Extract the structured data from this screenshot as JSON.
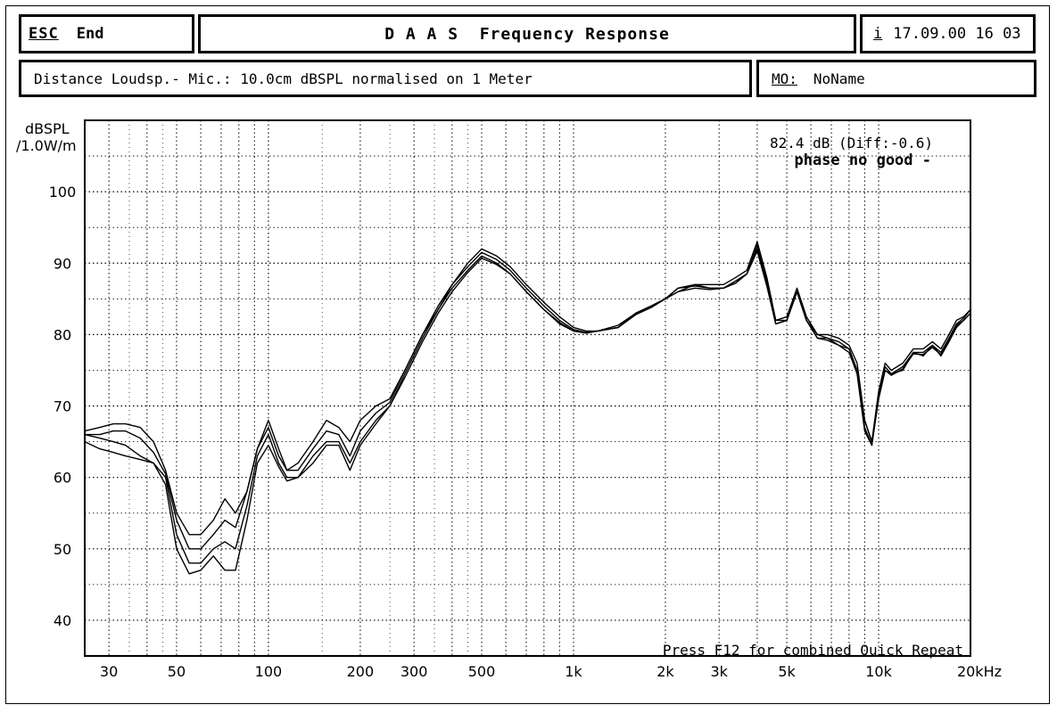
{
  "header": {
    "esc_key": "ESC",
    "end_label": "End",
    "title": "D A A S  Frequency Response",
    "info_key": "i",
    "datetime": "17.09.00 16 03"
  },
  "subheader": {
    "info": "Distance Loudsp.- Mic.: 10.0cm dBSPL normalised on 1 Meter",
    "mo_key": "MO:",
    "mo_value": "NoName"
  },
  "chart_data": {
    "type": "line",
    "ylabel": "dBSPL",
    "ylabel_unit": "/1.0W/m",
    "xscale": "log",
    "xlim": [
      25,
      20000
    ],
    "ylim": [
      35,
      110
    ],
    "yticks": [
      40,
      50,
      60,
      70,
      80,
      90,
      100
    ],
    "xticks": [
      {
        "v": 30,
        "label": "30"
      },
      {
        "v": 50,
        "label": "50"
      },
      {
        "v": 100,
        "label": "100"
      },
      {
        "v": 200,
        "label": "200"
      },
      {
        "v": 300,
        "label": "300"
      },
      {
        "v": 500,
        "label": "500"
      },
      {
        "v": 1000,
        "label": "1k"
      },
      {
        "v": 2000,
        "label": "2k"
      },
      {
        "v": 3000,
        "label": "3k"
      },
      {
        "v": 5000,
        "label": "5k"
      },
      {
        "v": 10000,
        "label": "10k"
      },
      {
        "v": 20000,
        "label": "20kHz"
      }
    ],
    "grid": true,
    "annotations": {
      "level": "82.4 dB (Diff:-0.6)",
      "warning": "phase no good -",
      "footer": "Press F12 for combined Quick Repeat"
    },
    "series": [
      {
        "x": [
          25,
          28,
          31,
          34,
          38,
          42,
          46,
          50,
          55,
          60,
          66,
          72,
          78,
          85,
          92,
          100,
          108,
          115,
          125,
          140,
          155,
          170,
          185,
          200,
          225,
          250,
          280,
          320,
          360,
          400,
          450,
          500,
          560,
          620,
          700,
          800,
          900,
          1000,
          1100,
          1200,
          1400,
          1600,
          1800,
          2000,
          2200,
          2500,
          2800,
          3100,
          3400,
          3700,
          4000,
          4300,
          4600,
          5000,
          5400,
          5800,
          6300,
          6800,
          7400,
          8000,
          8500,
          9000,
          9500,
          10000,
          10500,
          11000,
          12000,
          13000,
          14000,
          15000,
          16000,
          17000,
          18000,
          19000,
          20000
        ],
        "y": [
          66.5,
          67,
          67.5,
          67.5,
          67,
          65,
          61,
          55,
          52,
          52,
          54,
          57,
          55,
          58,
          64,
          68,
          64,
          61,
          62,
          65,
          68,
          67,
          65,
          68,
          70,
          71,
          75,
          80,
          84,
          87,
          90,
          92,
          91,
          89.5,
          87,
          84.5,
          82.5,
          81,
          80.5,
          80.5,
          81,
          83,
          84,
          85,
          86,
          87,
          87,
          87,
          88,
          89,
          93,
          88,
          82,
          82,
          86,
          82,
          80,
          80,
          79.5,
          78.5,
          76,
          68,
          65,
          72,
          76,
          75,
          76,
          78,
          78,
          79,
          78,
          80,
          82,
          82.5,
          83.5
        ]
      },
      {
        "x": [
          25,
          28,
          31,
          34,
          38,
          42,
          46,
          50,
          55,
          60,
          66,
          72,
          78,
          85,
          92,
          100,
          108,
          115,
          125,
          140,
          155,
          170,
          185,
          200,
          225,
          250,
          280,
          320,
          360,
          400,
          450,
          500,
          560,
          620,
          700,
          800,
          900,
          1000,
          1100,
          1200,
          1400,
          1600,
          1800,
          2000,
          2200,
          2500,
          2800,
          3100,
          3400,
          3700,
          4000,
          4300,
          4600,
          5000,
          5400,
          5800,
          6300,
          6800,
          7400,
          8000,
          8500,
          9000,
          9500,
          10000,
          10500,
          11000,
          12000,
          13000,
          14000,
          15000,
          16000,
          17000,
          18000,
          19000,
          20000
        ],
        "y": [
          66,
          66,
          66.5,
          66.5,
          65.5,
          63.5,
          60.5,
          54,
          50,
          50,
          52,
          54,
          53,
          58,
          64,
          67,
          63,
          61,
          61,
          64,
          66.5,
          66,
          63,
          66.5,
          69,
          70.5,
          75,
          80,
          83.5,
          87,
          89.5,
          91.5,
          90.5,
          89,
          86.5,
          84,
          82,
          80.7,
          80.3,
          80.5,
          81,
          83,
          84,
          85,
          86.5,
          87,
          86.5,
          86.5,
          87.5,
          88.5,
          92.5,
          87.5,
          82,
          82.5,
          86.5,
          82.5,
          80,
          79.5,
          79,
          78,
          75,
          67,
          64.5,
          71.5,
          75.5,
          74.5,
          75.5,
          77.5,
          77.5,
          78.5,
          77.5,
          79.5,
          81.5,
          82.3,
          83.5
        ]
      },
      {
        "x": [
          25,
          28,
          31,
          34,
          38,
          42,
          46,
          50,
          55,
          60,
          66,
          72,
          78,
          85,
          92,
          100,
          108,
          115,
          125,
          140,
          155,
          170,
          185,
          200,
          225,
          250,
          280,
          320,
          360,
          400,
          450,
          500,
          560,
          620,
          700,
          800,
          900,
          1000,
          1100,
          1200,
          1400,
          1600,
          1800,
          2000,
          2200,
          2500,
          2800,
          3100,
          3400,
          3700,
          4000,
          4300,
          4600,
          5000,
          5400,
          5800,
          6300,
          6800,
          7400,
          8000,
          8500,
          9000,
          9500,
          10000,
          10500,
          11000,
          12000,
          13000,
          14000,
          15000,
          16000,
          17000,
          18000,
          19000,
          20000
        ],
        "y": [
          66,
          65.5,
          65,
          64.5,
          63,
          62,
          60,
          52,
          48,
          48,
          50,
          51,
          50,
          56,
          63,
          66,
          62,
          60,
          60,
          63,
          65,
          65,
          62,
          65,
          68,
          70,
          74.5,
          79.5,
          83.5,
          86.5,
          89,
          91,
          90,
          88.5,
          86,
          83.5,
          81.7,
          80.5,
          80.3,
          80.5,
          81.3,
          83,
          84,
          85,
          86.5,
          86.8,
          86.5,
          86.5,
          87.5,
          88.5,
          92,
          87,
          81.5,
          82,
          86,
          82,
          79.5,
          79.5,
          78.5,
          78,
          75,
          68,
          65,
          71,
          75,
          74.5,
          75,
          77.5,
          77,
          78.5,
          77,
          79,
          81,
          82,
          83
        ]
      },
      {
        "x": [
          25,
          28,
          31,
          34,
          38,
          42,
          46,
          50,
          55,
          60,
          66,
          72,
          78,
          85,
          92,
          100,
          108,
          115,
          125,
          140,
          155,
          170,
          185,
          200,
          225,
          250,
          280,
          320,
          360,
          400,
          450,
          500,
          560,
          620,
          700,
          800,
          900,
          1000,
          1100,
          1200,
          1400,
          1600,
          1800,
          2000,
          2200,
          2500,
          2800,
          3100,
          3400,
          3700,
          4000,
          4300,
          4600,
          5000,
          5400,
          5800,
          6300,
          6800,
          7400,
          8000,
          8500,
          9000,
          9500,
          10000,
          10500,
          11000,
          12000,
          13000,
          14000,
          15000,
          16000,
          17000,
          18000,
          19000,
          20000
        ],
        "y": [
          65,
          64,
          63.5,
          63,
          62.5,
          62,
          59,
          50,
          46.5,
          47,
          49,
          47,
          47,
          54,
          62,
          64.5,
          61.5,
          59.5,
          60,
          62,
          64.5,
          64.5,
          61,
          64.5,
          67.5,
          70,
          74,
          79,
          83,
          86,
          88.7,
          90.7,
          89.8,
          88.5,
          86,
          83.5,
          81.5,
          80.5,
          80.2,
          80.5,
          81,
          82.8,
          83.8,
          85,
          86,
          86.5,
          86.3,
          86.5,
          87.2,
          88.5,
          91.7,
          86.8,
          81.5,
          82,
          86,
          82,
          79.5,
          79.2,
          78.5,
          77.5,
          74.5,
          66.5,
          64.5,
          71,
          75,
          74.3,
          75.2,
          77.3,
          77.2,
          78.2,
          77.2,
          79.2,
          81.3,
          82,
          83
        ]
      }
    ]
  }
}
